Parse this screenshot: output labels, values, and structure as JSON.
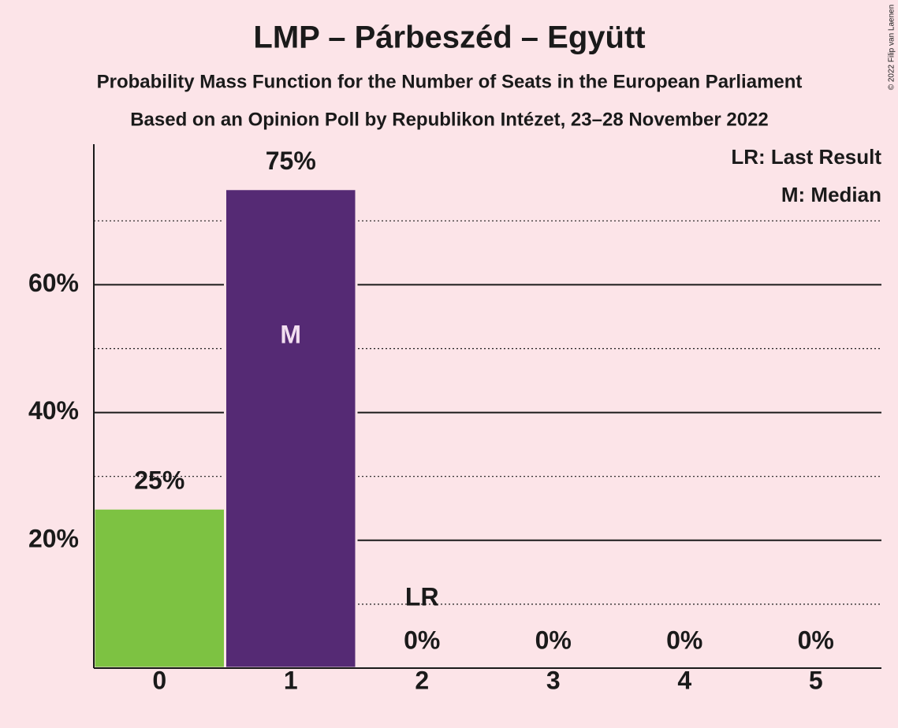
{
  "chart_data": {
    "type": "bar",
    "title": "LMP – Párbeszéd – Együtt",
    "subtitle": "Probability Mass Function for the Number of Seats in the European Parliament",
    "subtitle2": "Based on an Opinion Poll by Republikon Intézet, 23–28 November 2022",
    "copyright": "© 2022 Filip van Laenen",
    "categories": [
      "0",
      "1",
      "2",
      "3",
      "4",
      "5"
    ],
    "values": [
      25,
      75,
      0,
      0,
      0,
      0
    ],
    "value_labels": [
      "25%",
      "75%",
      "0%",
      "0%",
      "0%",
      "0%"
    ],
    "colors": [
      "#7dc242",
      "#552a74",
      "#552a74",
      "#552a74",
      "#552a74",
      "#552a74"
    ],
    "ylim": [
      0,
      82
    ],
    "yticks": [
      {
        "value": 20,
        "label": "20%"
      },
      {
        "value": 40,
        "label": "40%"
      },
      {
        "value": 60,
        "label": "60%"
      }
    ],
    "minor_yticks": [
      10,
      30,
      50,
      70
    ],
    "grid": true,
    "annotations": [
      {
        "text": "M",
        "category": "1"
      },
      {
        "text": "LR",
        "category": "2"
      }
    ],
    "legend": [
      "LR: Last Result",
      "M: Median"
    ]
  }
}
